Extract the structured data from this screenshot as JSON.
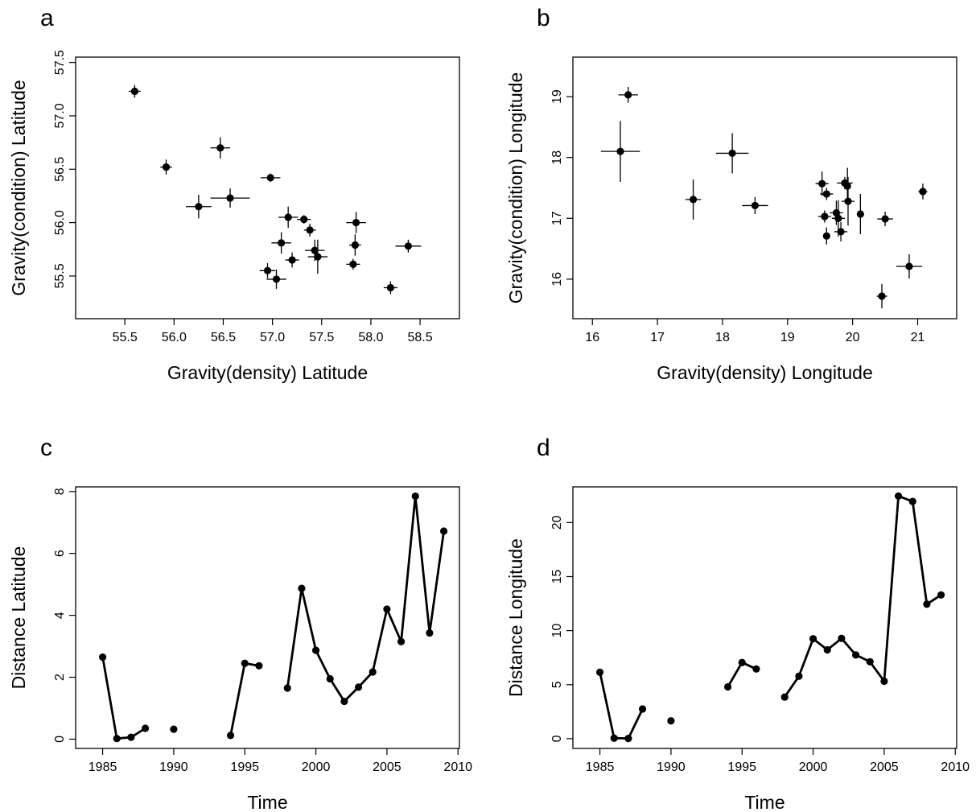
{
  "chart_data": [
    {
      "panel": "a",
      "type": "scatter",
      "xlabel": "Gravity(density) Latitude",
      "ylabel": "Gravity(condition) Latitude",
      "xlim": [
        55.0,
        58.9
      ],
      "ylim": [
        55.1,
        57.55
      ],
      "xticks": [
        "55.5",
        "56.0",
        "56.5",
        "57.0",
        "57.5",
        "58.0",
        "58.5"
      ],
      "yticks": [
        "55.5",
        "56.0",
        "56.5",
        "57.0",
        "57.5"
      ],
      "error_bars": true,
      "points": [
        {
          "x": 55.6,
          "y": 57.23,
          "xerr": 0.06,
          "yerr": 0.06
        },
        {
          "x": 55.92,
          "y": 56.52,
          "xerr": 0.06,
          "yerr": 0.07
        },
        {
          "x": 56.25,
          "y": 56.15,
          "xerr": 0.13,
          "yerr": 0.11
        },
        {
          "x": 56.47,
          "y": 56.7,
          "xerr": 0.1,
          "yerr": 0.1
        },
        {
          "x": 56.57,
          "y": 56.23,
          "xerr": 0.2,
          "yerr": 0.09
        },
        {
          "x": 56.98,
          "y": 56.42,
          "xerr": 0.1,
          "yerr": 0.04
        },
        {
          "x": 56.95,
          "y": 55.55,
          "xerr": 0.08,
          "yerr": 0.07
        },
        {
          "x": 57.04,
          "y": 55.47,
          "xerr": 0.1,
          "yerr": 0.09
        },
        {
          "x": 57.09,
          "y": 55.81,
          "xerr": 0.1,
          "yerr": 0.1
        },
        {
          "x": 57.16,
          "y": 56.05,
          "xerr": 0.1,
          "yerr": 0.1
        },
        {
          "x": 57.2,
          "y": 55.65,
          "xerr": 0.07,
          "yerr": 0.07
        },
        {
          "x": 57.32,
          "y": 56.03,
          "xerr": 0.07,
          "yerr": 0.04
        },
        {
          "x": 57.38,
          "y": 55.93,
          "xerr": 0.06,
          "yerr": 0.06
        },
        {
          "x": 57.43,
          "y": 55.74,
          "xerr": 0.1,
          "yerr": 0.1
        },
        {
          "x": 57.46,
          "y": 55.68,
          "xerr": 0.1,
          "yerr": 0.16
        },
        {
          "x": 57.85,
          "y": 56.0,
          "xerr": 0.1,
          "yerr": 0.1
        },
        {
          "x": 57.84,
          "y": 55.79,
          "xerr": 0.06,
          "yerr": 0.1
        },
        {
          "x": 57.82,
          "y": 55.61,
          "xerr": 0.07,
          "yerr": 0.05
        },
        {
          "x": 58.2,
          "y": 55.39,
          "xerr": 0.07,
          "yerr": 0.06
        },
        {
          "x": 58.38,
          "y": 55.78,
          "xerr": 0.13,
          "yerr": 0.06
        }
      ]
    },
    {
      "panel": "b",
      "type": "scatter",
      "xlabel": "Gravity(density) Longitude",
      "ylabel": "Gravity(condition) Longitude",
      "xlim": [
        15.7,
        21.6
      ],
      "ylim": [
        15.35,
        19.65
      ],
      "xticks": [
        "16",
        "17",
        "18",
        "19",
        "20",
        "21"
      ],
      "yticks": [
        "16",
        "17",
        "18",
        "19"
      ],
      "error_bars": true,
      "points": [
        {
          "x": 16.55,
          "y": 19.03,
          "xerr": 0.15,
          "yerr": 0.13
        },
        {
          "x": 16.43,
          "y": 18.1,
          "xerr": 0.3,
          "yerr": 0.5
        },
        {
          "x": 17.55,
          "y": 17.31,
          "xerr": 0.12,
          "yerr": 0.33
        },
        {
          "x": 18.15,
          "y": 18.07,
          "xerr": 0.25,
          "yerr": 0.33
        },
        {
          "x": 18.5,
          "y": 17.21,
          "xerr": 0.2,
          "yerr": 0.14
        },
        {
          "x": 19.53,
          "y": 17.57,
          "xerr": 0.1,
          "yerr": 0.2
        },
        {
          "x": 19.6,
          "y": 17.4,
          "xerr": 0.1,
          "yerr": 0.1
        },
        {
          "x": 19.57,
          "y": 17.03,
          "xerr": 0.1,
          "yerr": 0.1
        },
        {
          "x": 19.6,
          "y": 16.71,
          "xerr": 0.05,
          "yerr": 0.14
        },
        {
          "x": 19.75,
          "y": 17.09,
          "xerr": 0.1,
          "yerr": 0.2
        },
        {
          "x": 19.78,
          "y": 17.0,
          "xerr": 0.1,
          "yerr": 0.3
        },
        {
          "x": 19.82,
          "y": 16.78,
          "xerr": 0.1,
          "yerr": 0.16
        },
        {
          "x": 19.88,
          "y": 17.58,
          "xerr": 0.12,
          "yerr": 0.1
        },
        {
          "x": 19.92,
          "y": 17.53,
          "xerr": 0.05,
          "yerr": 0.3
        },
        {
          "x": 19.93,
          "y": 17.28,
          "xerr": 0.1,
          "yerr": 0.4
        },
        {
          "x": 20.12,
          "y": 17.07,
          "xerr": 0.05,
          "yerr": 0.33
        },
        {
          "x": 20.5,
          "y": 16.99,
          "xerr": 0.12,
          "yerr": 0.12
        },
        {
          "x": 20.45,
          "y": 15.72,
          "xerr": 0.08,
          "yerr": 0.2
        },
        {
          "x": 20.87,
          "y": 16.21,
          "xerr": 0.2,
          "yerr": 0.2
        },
        {
          "x": 21.08,
          "y": 17.44,
          "xerr": 0.07,
          "yerr": 0.13
        }
      ]
    },
    {
      "panel": "c",
      "type": "line",
      "xlabel": "Time",
      "ylabel": "Distance Latitude",
      "xlim": [
        1983.1,
        2010.1
      ],
      "ylim": [
        -0.3,
        8.15
      ],
      "xticks": [
        "1985",
        "1990",
        "1995",
        "2000",
        "2005",
        "2010"
      ],
      "yticks": [
        "0",
        "2",
        "4",
        "6",
        "8"
      ],
      "segments": [
        [
          [
            1985,
            2.65
          ],
          [
            1986,
            0.02
          ],
          [
            1987,
            0.06
          ],
          [
            1988,
            0.35
          ]
        ],
        [
          [
            1990,
            0.32
          ]
        ],
        [
          [
            1994,
            0.12
          ],
          [
            1995,
            2.45
          ],
          [
            1996,
            2.37
          ]
        ],
        [
          [
            1998,
            1.65
          ],
          [
            1999,
            4.87
          ],
          [
            2000,
            2.87
          ],
          [
            2001,
            1.95
          ],
          [
            2002,
            1.22
          ],
          [
            2003,
            1.68
          ],
          [
            2004,
            2.17
          ],
          [
            2005,
            4.2
          ],
          [
            2006,
            3.15
          ],
          [
            2007,
            7.85
          ],
          [
            2008,
            3.43
          ],
          [
            2009,
            6.72
          ]
        ]
      ]
    },
    {
      "panel": "d",
      "type": "line",
      "xlabel": "Time",
      "ylabel": "Distance Longitude",
      "xlim": [
        1983.1,
        2010.1
      ],
      "ylim": [
        -0.9,
        23.3
      ],
      "xticks": [
        "1985",
        "1990",
        "1995",
        "2000",
        "2005",
        "2010"
      ],
      "yticks": [
        "0",
        "5",
        "10",
        "15",
        "20"
      ],
      "segments": [
        [
          [
            1985,
            6.15
          ],
          [
            1986,
            0.05
          ],
          [
            1987,
            0.02
          ],
          [
            1988,
            2.75
          ]
        ],
        [
          [
            1990,
            1.65
          ]
        ],
        [
          [
            1994,
            4.8
          ],
          [
            1995,
            7.05
          ],
          [
            1996,
            6.45
          ]
        ],
        [
          [
            1998,
            3.85
          ],
          [
            1999,
            5.78
          ],
          [
            2000,
            9.25
          ],
          [
            2001,
            8.22
          ],
          [
            2002,
            9.28
          ],
          [
            2003,
            7.75
          ],
          [
            2004,
            7.12
          ],
          [
            2005,
            5.32
          ],
          [
            2006,
            22.45
          ],
          [
            2007,
            21.95
          ],
          [
            2008,
            12.45
          ],
          [
            2009,
            13.3
          ]
        ]
      ]
    }
  ]
}
